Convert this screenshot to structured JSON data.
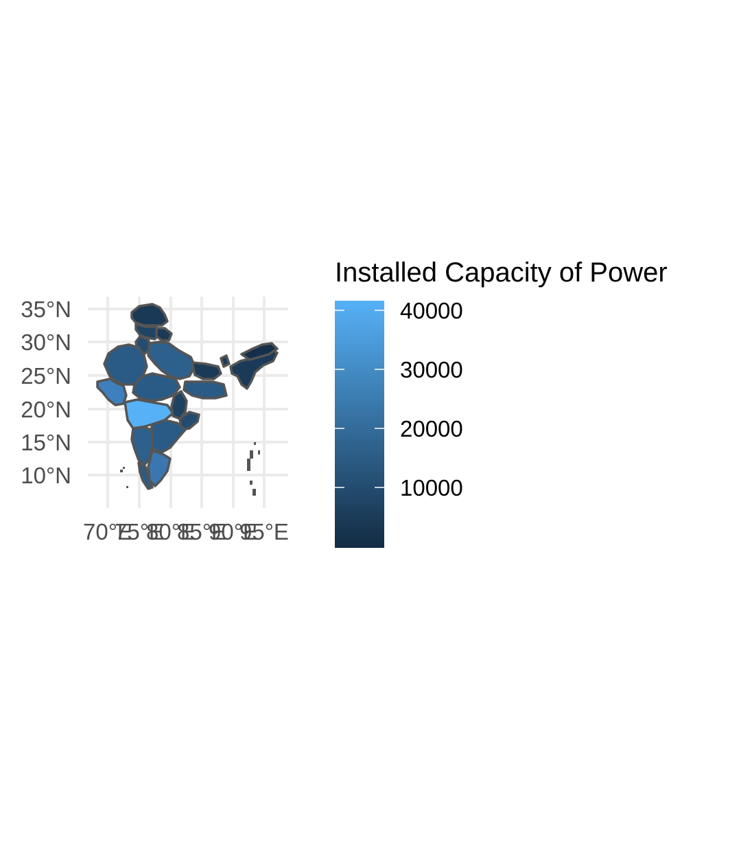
{
  "chart_data": {
    "type": "choropleth-map",
    "x_ticks": [
      "70°E",
      "75°E",
      "80°E",
      "85°E",
      "90°E",
      "95°E"
    ],
    "y_ticks": [
      "35°N",
      "30°N",
      "25°N",
      "20°N",
      "15°N",
      "10°N"
    ],
    "legend": {
      "title": "Installed Capacity of Power",
      "ticks": [
        "40000",
        "30000",
        "20000",
        "10000"
      ],
      "min_value": 0,
      "max_value": 42000,
      "color_low": "#132b43",
      "color_high": "#56b1f7"
    },
    "grid": true,
    "border_color": "#555555"
  }
}
